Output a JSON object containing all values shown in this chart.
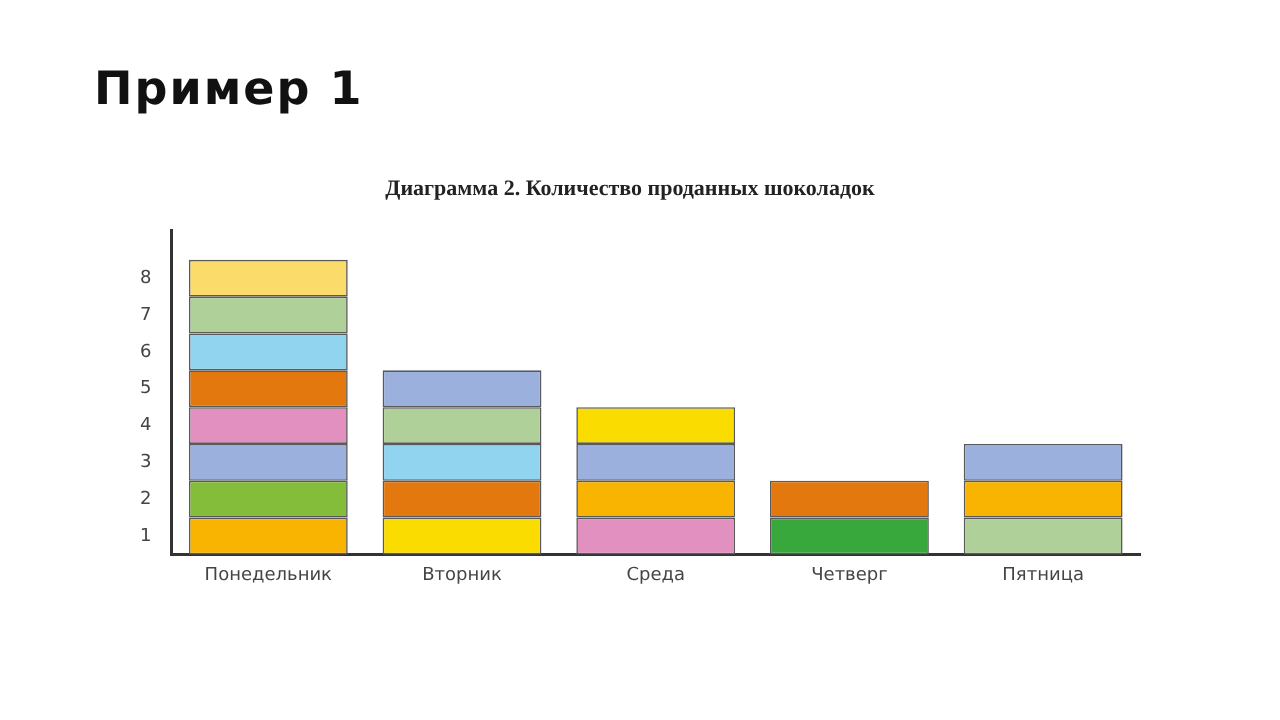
{
  "chart_data": {
    "type": "bar",
    "stacked": true,
    "title": "Пример 1",
    "subtitle": "Диаграмма 2. Количество проданных шоколадок",
    "categories": [
      "Понедельник",
      "Вторник",
      "Среда",
      "Четверг",
      "Пятница"
    ],
    "series": [
      {
        "colors": [
          "#f8b400",
          "#fadc00",
          "#e190c0",
          "#38a83c",
          "#b0d09a"
        ],
        "values": [
          1,
          1,
          1,
          1,
          1
        ]
      },
      {
        "colors": [
          "#84bd3a",
          "#e3780f",
          "#f8b400",
          "#e3780f",
          "#f8b400"
        ],
        "values": [
          1,
          1,
          1,
          1,
          1
        ]
      },
      {
        "colors": [
          "#9bb0dc",
          "#90d4f0",
          "#9bb0dc",
          null,
          "#9bb0dc"
        ],
        "values": [
          1,
          1,
          1,
          null,
          1
        ]
      },
      {
        "colors": [
          "#e190c0",
          "#b0d09a",
          "#fadc00",
          null,
          null
        ],
        "values": [
          1,
          1,
          1,
          null,
          null
        ]
      },
      {
        "colors": [
          "#e3780f",
          "#9bb0dc",
          null,
          null,
          null
        ],
        "values": [
          1,
          1,
          null,
          null,
          null
        ]
      },
      {
        "colors": [
          "#90d4f0",
          null,
          null,
          null,
          null
        ],
        "values": [
          1,
          null,
          null,
          null,
          null
        ]
      },
      {
        "colors": [
          "#b0d09a",
          null,
          null,
          null,
          null
        ],
        "values": [
          1,
          null,
          null,
          null,
          null
        ]
      },
      {
        "colors": [
          "#fbdc6a",
          null,
          null,
          null,
          null
        ],
        "values": [
          1,
          null,
          null,
          null,
          null
        ]
      }
    ],
    "ylim": [
      0,
      8.8
    ],
    "yticks": [
      {
        "value": 0.5,
        "label": "1"
      },
      {
        "value": 1.5,
        "label": "2"
      },
      {
        "value": 2.5,
        "label": "3"
      },
      {
        "value": 3.5,
        "label": "4"
      },
      {
        "value": 4.5,
        "label": "5"
      },
      {
        "value": 5.5,
        "label": "6"
      },
      {
        "value": 6.5,
        "label": "7"
      },
      {
        "value": 7.5,
        "label": "8"
      }
    ],
    "grid": false,
    "legend": false
  }
}
